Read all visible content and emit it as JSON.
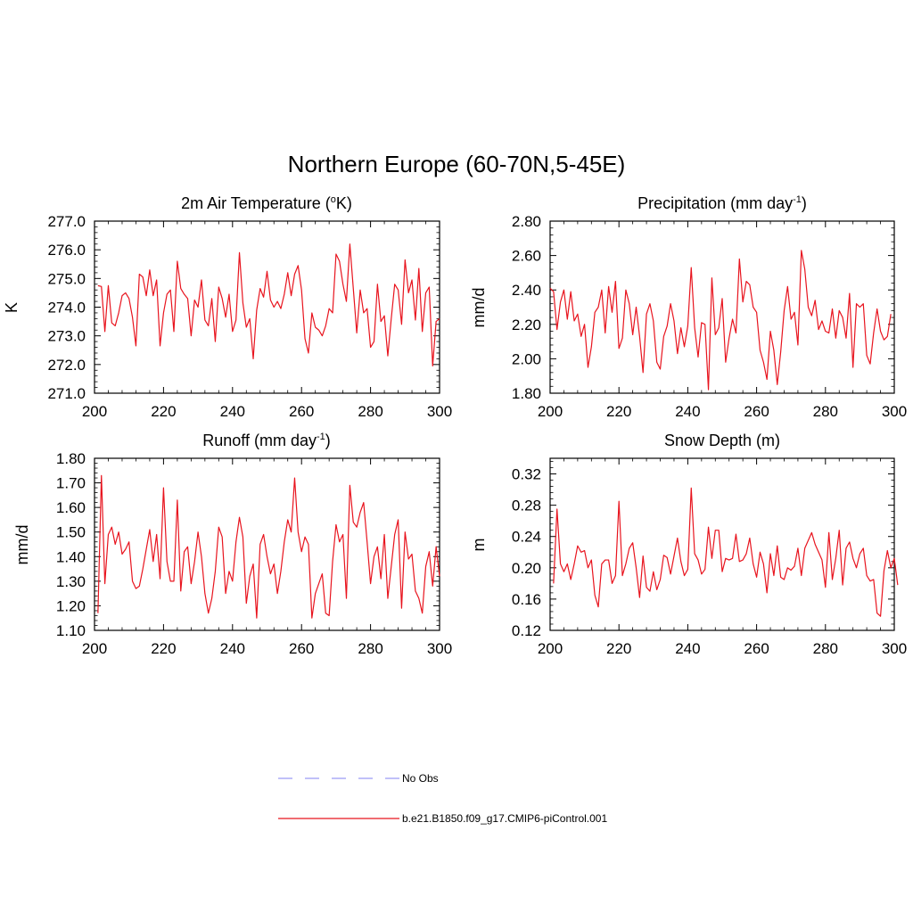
{
  "title": "Northern Europe (60-70N,5-45E)",
  "line_color": "#e8141e",
  "obs_color": "#9a9af5",
  "chart_data": [
    {
      "type": "line",
      "title": "2m Air Temperature (",
      "title_sup": "o",
      "title_tail": "K)",
      "ylabel": "K",
      "xlim": [
        200,
        300
      ],
      "ylim": [
        271,
        277
      ],
      "xticks": [
        200,
        220,
        240,
        260,
        280,
        300
      ],
      "yticks": [
        271,
        272,
        273,
        274,
        275,
        276,
        277
      ],
      "ytick_labels": [
        "271.0",
        "272.0",
        "273.0",
        "274.0",
        "275.0",
        "276.0",
        "277.0"
      ],
      "x_start": 201,
      "values": [
        274.75,
        274.72,
        273.15,
        274.75,
        273.45,
        273.35,
        273.8,
        274.4,
        274.5,
        274.3,
        273.65,
        272.65,
        275.15,
        275.05,
        274.4,
        275.3,
        274.4,
        274.95,
        272.65,
        273.8,
        274.45,
        274.6,
        273.15,
        275.6,
        274.65,
        274.45,
        274.3,
        273.0,
        274.25,
        274.0,
        274.95,
        273.55,
        273.35,
        274.3,
        272.8,
        274.7,
        274.3,
        273.65,
        274.45,
        273.15,
        273.55,
        275.9,
        274.15,
        273.3,
        273.6,
        272.2,
        273.9,
        274.65,
        274.35,
        275.25,
        274.25,
        274.0,
        274.2,
        273.95,
        274.45,
        275.2,
        274.4,
        275.15,
        275.45,
        274.6,
        272.9,
        272.4,
        273.8,
        273.3,
        273.2,
        273.0,
        273.35,
        273.95,
        273.8,
        275.85,
        275.6,
        274.8,
        274.2,
        276.2,
        274.65,
        273.1,
        274.6,
        273.8,
        273.95,
        272.6,
        272.8,
        274.8,
        273.5,
        273.7,
        272.3,
        273.6,
        274.8,
        274.6,
        273.4,
        275.65,
        274.5,
        274.95,
        273.55,
        275.35,
        273.15,
        274.5,
        274.7,
        271.95,
        273.5,
        273.6
      ]
    },
    {
      "type": "line",
      "title": "Precipitation (mm day",
      "title_sup": "-1",
      "title_tail": ")",
      "ylabel": "mm/d",
      "xlim": [
        200,
        300
      ],
      "ylim": [
        1.8,
        2.8
      ],
      "xticks": [
        200,
        220,
        240,
        260,
        280,
        300
      ],
      "yticks": [
        1.8,
        2.0,
        2.2,
        2.4,
        2.6,
        2.8
      ],
      "ytick_labels": [
        "1.80",
        "2.00",
        "2.20",
        "2.40",
        "2.60",
        "2.80"
      ],
      "x_start": 200,
      "values": [
        2.41,
        2.39,
        2.17,
        2.33,
        2.4,
        2.23,
        2.39,
        2.22,
        2.26,
        2.13,
        2.2,
        1.95,
        2.07,
        2.27,
        2.3,
        2.4,
        2.15,
        2.42,
        2.27,
        2.45,
        2.06,
        2.12,
        2.4,
        2.32,
        2.14,
        2.3,
        2.13,
        1.92,
        2.26,
        2.32,
        2.22,
        1.98,
        1.94,
        2.13,
        2.19,
        2.32,
        2.22,
        2.03,
        2.18,
        2.07,
        2.19,
        2.53,
        2.18,
        2.01,
        2.21,
        2.2,
        1.82,
        2.47,
        2.14,
        2.18,
        2.35,
        1.98,
        2.12,
        2.23,
        2.15,
        2.58,
        2.33,
        2.45,
        2.43,
        2.3,
        2.27,
        2.05,
        1.98,
        1.88,
        2.16,
        2.05,
        1.85,
        2.04,
        2.28,
        2.42,
        2.23,
        2.27,
        2.08,
        2.63,
        2.52,
        2.3,
        2.25,
        2.34,
        2.17,
        2.22,
        2.16,
        2.15,
        2.29,
        2.12,
        2.28,
        2.24,
        2.12,
        2.38,
        1.95,
        2.32,
        2.3,
        2.32,
        2.02,
        1.97,
        2.15,
        2.29,
        2.16,
        2.11,
        2.13,
        2.26
      ]
    },
    {
      "type": "line",
      "title": "Runoff (mm day",
      "title_sup": "-1",
      "title_tail": ")",
      "ylabel": "mm/d",
      "xlim": [
        200,
        300
      ],
      "ylim": [
        1.1,
        1.8
      ],
      "xticks": [
        200,
        220,
        240,
        260,
        280,
        300
      ],
      "yticks": [
        1.1,
        1.2,
        1.3,
        1.4,
        1.5,
        1.6,
        1.7,
        1.8
      ],
      "ytick_labels": [
        "1.10",
        "1.20",
        "1.30",
        "1.40",
        "1.50",
        "1.60",
        "1.70",
        "1.80"
      ],
      "x_start": 201,
      "values": [
        1.17,
        1.73,
        1.29,
        1.49,
        1.52,
        1.45,
        1.5,
        1.41,
        1.43,
        1.46,
        1.3,
        1.27,
        1.28,
        1.35,
        1.43,
        1.51,
        1.38,
        1.49,
        1.31,
        1.68,
        1.38,
        1.3,
        1.3,
        1.63,
        1.26,
        1.42,
        1.44,
        1.29,
        1.38,
        1.5,
        1.4,
        1.25,
        1.17,
        1.23,
        1.34,
        1.52,
        1.48,
        1.25,
        1.34,
        1.3,
        1.46,
        1.56,
        1.48,
        1.21,
        1.32,
        1.37,
        1.15,
        1.45,
        1.49,
        1.4,
        1.33,
        1.37,
        1.25,
        1.34,
        1.46,
        1.55,
        1.5,
        1.72,
        1.5,
        1.42,
        1.48,
        1.45,
        1.15,
        1.25,
        1.29,
        1.33,
        1.17,
        1.16,
        1.38,
        1.53,
        1.46,
        1.49,
        1.23,
        1.69,
        1.54,
        1.52,
        1.58,
        1.62,
        1.46,
        1.29,
        1.4,
        1.44,
        1.31,
        1.49,
        1.23,
        1.36,
        1.49,
        1.55,
        1.19,
        1.5,
        1.39,
        1.41,
        1.26,
        1.23,
        1.17,
        1.36,
        1.42,
        1.28,
        1.44,
        1.32
      ]
    },
    {
      "type": "line",
      "title": "Snow Depth (m)",
      "title_sup": "",
      "title_tail": "",
      "ylabel": "m",
      "xlim": [
        200,
        300
      ],
      "ylim": [
        0.12,
        0.34
      ],
      "xticks": [
        200,
        220,
        240,
        260,
        280,
        300
      ],
      "yticks": [
        0.12,
        0.16,
        0.2,
        0.24,
        0.28,
        0.32
      ],
      "ytick_labels": [
        "0.12",
        "0.16",
        "0.20",
        "0.24",
        "0.28",
        "0.32"
      ],
      "x_start": 201,
      "values": [
        0.18,
        0.275,
        0.205,
        0.195,
        0.205,
        0.185,
        0.205,
        0.228,
        0.22,
        0.222,
        0.2,
        0.21,
        0.165,
        0.15,
        0.205,
        0.21,
        0.21,
        0.18,
        0.19,
        0.285,
        0.19,
        0.205,
        0.225,
        0.232,
        0.2,
        0.162,
        0.215,
        0.175,
        0.17,
        0.195,
        0.172,
        0.185,
        0.216,
        0.213,
        0.192,
        0.215,
        0.238,
        0.208,
        0.19,
        0.198,
        0.302,
        0.218,
        0.21,
        0.192,
        0.198,
        0.252,
        0.212,
        0.248,
        0.248,
        0.195,
        0.212,
        0.21,
        0.212,
        0.243,
        0.208,
        0.21,
        0.218,
        0.238,
        0.205,
        0.188,
        0.22,
        0.205,
        0.168,
        0.218,
        0.19,
        0.228,
        0.188,
        0.185,
        0.2,
        0.197,
        0.202,
        0.225,
        0.19,
        0.225,
        0.235,
        0.245,
        0.23,
        0.22,
        0.21,
        0.175,
        0.245,
        0.185,
        0.212,
        0.248,
        0.178,
        0.225,
        0.233,
        0.212,
        0.2,
        0.218,
        0.225,
        0.19,
        0.183,
        0.185,
        0.142,
        0.138,
        0.196,
        0.222,
        0.2,
        0.212,
        0.178
      ]
    }
  ],
  "legend": {
    "obs_label": "No Obs",
    "model_label": "b.e21.B1850.f09_g17.CMIP6-piControl.001"
  }
}
